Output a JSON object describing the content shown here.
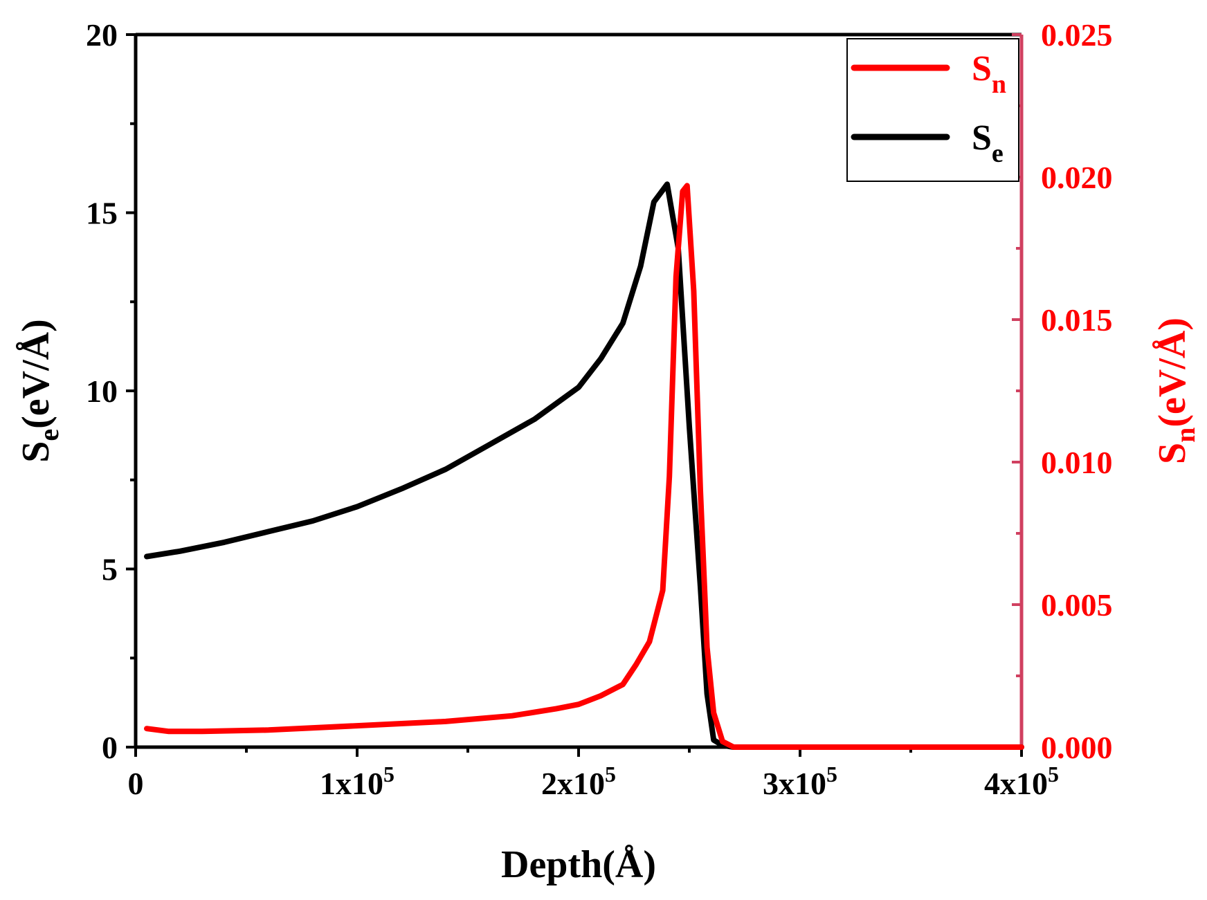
{
  "chart_data": {
    "type": "line",
    "title": "",
    "xlabel": "Depth(Å)",
    "x_ticks": [
      {
        "value": 0,
        "label": "0",
        "sup": ""
      },
      {
        "value": 100000,
        "label": "1x10",
        "sup": "5"
      },
      {
        "value": 200000,
        "label": "2x10",
        "sup": "5"
      },
      {
        "value": 300000,
        "label": "3x10",
        "sup": "5"
      },
      {
        "value": 400000,
        "label": "4x10",
        "sup": "5"
      }
    ],
    "xlim": [
      0,
      400000
    ],
    "y_left": {
      "label_main": "S",
      "label_sub": "e",
      "label_unit": "(eV/Å)",
      "ylim": [
        0,
        20
      ],
      "ticks": [
        "0",
        "5",
        "10",
        "15",
        "20"
      ],
      "color": "#000000"
    },
    "y_right": {
      "label_main": "S",
      "label_sub": "n",
      "label_unit": "(eV/Å)",
      "ylim": [
        0,
        0.025
      ],
      "ticks": [
        "0.000",
        "0.005",
        "0.010",
        "0.015",
        "0.020",
        "0.025"
      ],
      "color": "#ff0000"
    },
    "legend": {
      "position": "top-right",
      "entries": [
        {
          "main": "S",
          "sub": "n",
          "color": "#ff0000"
        },
        {
          "main": "S",
          "sub": "e",
          "color": "#000000"
        }
      ]
    },
    "series": [
      {
        "name": "Se",
        "axis": "left",
        "color": "#000000",
        "x": [
          5000,
          20000,
          40000,
          60000,
          80000,
          100000,
          120000,
          140000,
          160000,
          180000,
          200000,
          210000,
          220000,
          228000,
          234000,
          240000,
          245000,
          250000,
          255000,
          258000,
          261000,
          265000,
          270000,
          300000,
          400000
        ],
        "values": [
          5.35,
          5.5,
          5.75,
          6.05,
          6.35,
          6.75,
          7.25,
          7.8,
          8.5,
          9.2,
          10.1,
          10.9,
          11.9,
          13.5,
          15.3,
          15.8,
          14.0,
          9.0,
          4.5,
          1.5,
          0.2,
          0.05,
          0.0,
          0.0,
          0.0
        ]
      },
      {
        "name": "Sn",
        "axis": "right",
        "color": "#ff0000",
        "x": [
          5000,
          15000,
          30000,
          60000,
          100000,
          140000,
          170000,
          190000,
          200000,
          210000,
          220000,
          226000,
          232000,
          238000,
          241000,
          244000,
          247000,
          249000,
          252000,
          255000,
          258000,
          261000,
          265000,
          270000,
          300000,
          400000
        ],
        "values": [
          0.00065,
          0.00055,
          0.00055,
          0.0006,
          0.00075,
          0.0009,
          0.0011,
          0.00135,
          0.0015,
          0.0018,
          0.0022,
          0.0029,
          0.0037,
          0.0055,
          0.0095,
          0.0165,
          0.0195,
          0.0197,
          0.016,
          0.009,
          0.0035,
          0.0012,
          0.0002,
          0.0,
          0.0,
          0.0
        ]
      }
    ]
  }
}
